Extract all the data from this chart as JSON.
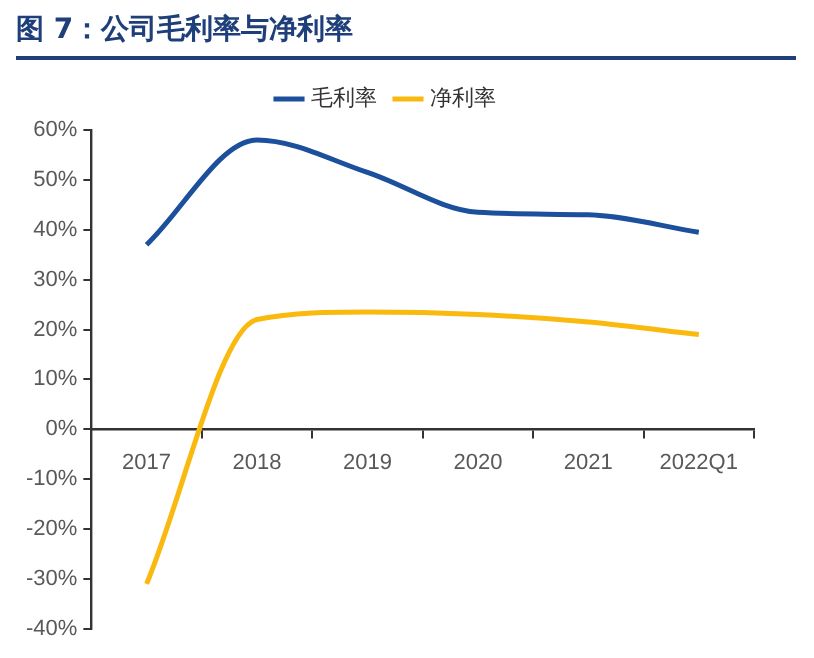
{
  "chart_data": {
    "type": "line",
    "title": "图 7：公司毛利率与净利率",
    "categories": [
      "2017",
      "2018",
      "2019",
      "2020",
      "2021",
      "2022Q1"
    ],
    "series": [
      {
        "name": "毛利率",
        "color": "#1c4f9c",
        "values": [
          37,
          58,
          51.5,
          43.5,
          43,
          39.5
        ]
      },
      {
        "name": "净利率",
        "color": "#f9b90f",
        "values": [
          -31,
          22,
          23.5,
          23,
          21.5,
          19
        ]
      }
    ],
    "ylim": [
      -40,
      60
    ],
    "yticks": [
      {
        "value": -40,
        "label": "-40%"
      },
      {
        "value": -30,
        "label": "-30%"
      },
      {
        "value": -20,
        "label": "-20%"
      },
      {
        "value": -10,
        "label": "-10%"
      },
      {
        "value": 0,
        "label": "0%"
      },
      {
        "value": 10,
        "label": "10%"
      },
      {
        "value": 20,
        "label": "20%"
      },
      {
        "value": 30,
        "label": "30%"
      },
      {
        "value": 40,
        "label": "40%"
      },
      {
        "value": 50,
        "label": "50%"
      },
      {
        "value": 60,
        "label": "60%"
      }
    ],
    "grid": false,
    "legend": "top",
    "marker": "none",
    "line_style": "solid"
  }
}
